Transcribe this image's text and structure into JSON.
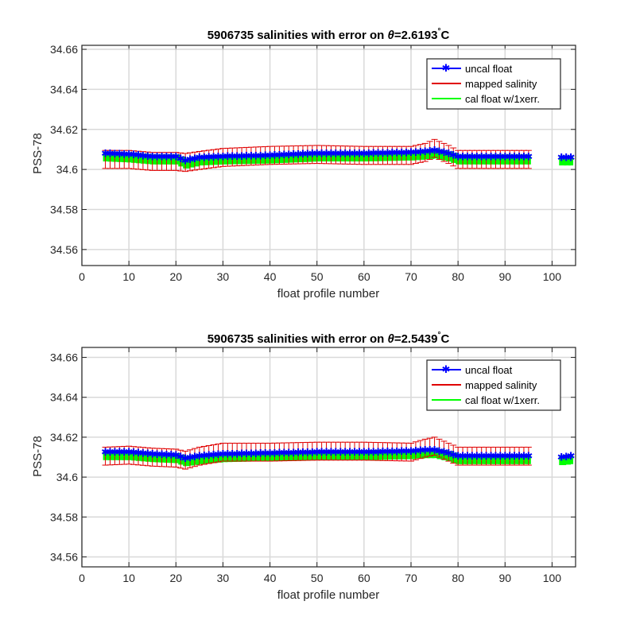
{
  "chart_data": [
    {
      "type": "line",
      "title_prefix": "5906735 salinities with error on ",
      "title_symbol": "θ",
      "title_value": "=2.6193",
      "title_degree": "°",
      "title_unit": "C",
      "xlabel": "float profile number",
      "ylabel": "PSS-78",
      "xlim": [
        0,
        105
      ],
      "ylim": [
        34.552,
        34.662
      ],
      "xticks": [
        0,
        10,
        20,
        30,
        40,
        50,
        60,
        70,
        80,
        90,
        100
      ],
      "yticks": [
        34.56,
        34.58,
        34.6,
        34.62,
        34.64,
        34.66
      ],
      "grid": true,
      "legend_position": "top-right",
      "legend": [
        "uncal float",
        "mapped salinity",
        "cal float w/1xerr."
      ],
      "colors": {
        "uncal": "#0000ff",
        "mapped": "#e00000",
        "cal": "#00ff00"
      },
      "uncal_anchors": [
        [
          5,
          34.608
        ],
        [
          10,
          34.6075
        ],
        [
          15,
          34.6065
        ],
        [
          20,
          34.6065
        ],
        [
          22,
          34.6045
        ],
        [
          25,
          34.606
        ],
        [
          30,
          34.6065
        ],
        [
          40,
          34.607
        ],
        [
          50,
          34.608
        ],
        [
          60,
          34.608
        ],
        [
          70,
          34.6085
        ],
        [
          73,
          34.609
        ],
        [
          75,
          34.6095
        ],
        [
          78,
          34.608
        ],
        [
          80,
          34.6065
        ],
        [
          85,
          34.6065
        ],
        [
          90,
          34.6065
        ],
        [
          95,
          34.6065
        ],
        [
          102,
          34.606
        ],
        [
          104,
          34.606
        ]
      ],
      "mapped_anchors": [
        [
          5,
          34.605
        ],
        [
          10,
          34.605
        ],
        [
          15,
          34.604
        ],
        [
          20,
          34.604
        ],
        [
          22,
          34.6035
        ],
        [
          25,
          34.6045
        ],
        [
          30,
          34.606
        ],
        [
          40,
          34.607
        ],
        [
          50,
          34.6075
        ],
        [
          60,
          34.607
        ],
        [
          70,
          34.607
        ],
        [
          73,
          34.6085
        ],
        [
          75,
          34.6105
        ],
        [
          78,
          34.6075
        ],
        [
          80,
          34.605
        ],
        [
          85,
          34.605
        ],
        [
          90,
          34.605
        ],
        [
          95,
          34.605
        ]
      ],
      "mapped_err": 0.0045,
      "cal_halfwidth": 0.0025,
      "gaps": [
        [
          96,
          101
        ]
      ]
    },
    {
      "type": "line",
      "title_prefix": "5906735 salinities with error on ",
      "title_symbol": "θ",
      "title_value": "=2.5439",
      "title_degree": "°",
      "title_unit": "C",
      "xlabel": "float profile number",
      "ylabel": "PSS-78",
      "xlim": [
        0,
        105
      ],
      "ylim": [
        34.555,
        34.665
      ],
      "xticks": [
        0,
        10,
        20,
        30,
        40,
        50,
        60,
        70,
        80,
        90,
        100
      ],
      "yticks": [
        34.56,
        34.58,
        34.6,
        34.62,
        34.64,
        34.66
      ],
      "grid": true,
      "legend_position": "top-right",
      "legend": [
        "uncal float",
        "mapped salinity",
        "cal float w/1xerr."
      ],
      "colors": {
        "uncal": "#0000ff",
        "mapped": "#e00000",
        "cal": "#00ff00"
      },
      "uncal_anchors": [
        [
          5,
          34.6125
        ],
        [
          10,
          34.6125
        ],
        [
          15,
          34.6115
        ],
        [
          20,
          34.611
        ],
        [
          22,
          34.6095
        ],
        [
          25,
          34.6105
        ],
        [
          30,
          34.6115
        ],
        [
          40,
          34.612
        ],
        [
          50,
          34.6125
        ],
        [
          60,
          34.6125
        ],
        [
          70,
          34.613
        ],
        [
          73,
          34.6135
        ],
        [
          75,
          34.6135
        ],
        [
          78,
          34.612
        ],
        [
          80,
          34.6105
        ],
        [
          85,
          34.6105
        ],
        [
          90,
          34.6105
        ],
        [
          95,
          34.6105
        ],
        [
          102,
          34.61
        ],
        [
          104,
          34.6105
        ]
      ],
      "mapped_anchors": [
        [
          5,
          34.6105
        ],
        [
          10,
          34.611
        ],
        [
          15,
          34.61
        ],
        [
          20,
          34.6095
        ],
        [
          22,
          34.6085
        ],
        [
          25,
          34.6105
        ],
        [
          30,
          34.6125
        ],
        [
          40,
          34.6125
        ],
        [
          50,
          34.613
        ],
        [
          60,
          34.613
        ],
        [
          70,
          34.6125
        ],
        [
          73,
          34.6145
        ],
        [
          75,
          34.6155
        ],
        [
          78,
          34.6125
        ],
        [
          80,
          34.6105
        ],
        [
          85,
          34.6105
        ],
        [
          90,
          34.6105
        ],
        [
          95,
          34.6105
        ]
      ],
      "mapped_err": 0.0045,
      "cal_halfwidth": 0.0025,
      "gaps": [
        [
          96,
          101
        ]
      ]
    }
  ]
}
